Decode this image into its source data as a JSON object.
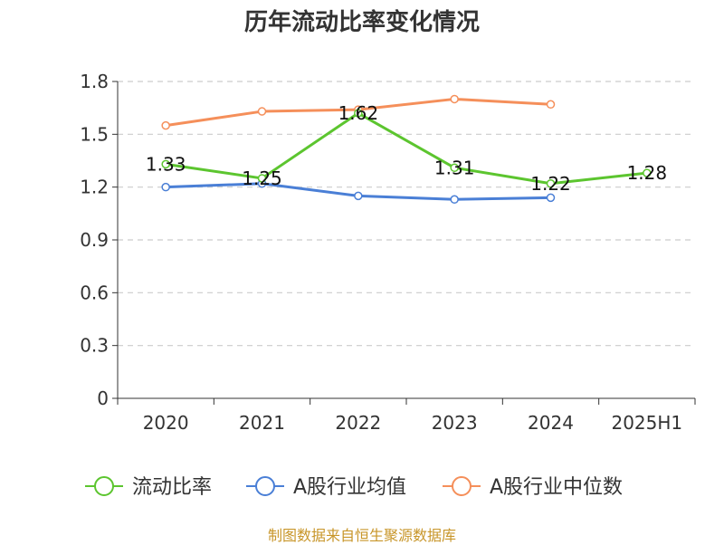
{
  "colors": {
    "grid": "#cccccc",
    "axis": "#333333",
    "text": "#333333",
    "source": "#c8962a"
  },
  "chart_data": {
    "type": "line",
    "title": "历年流动比率变化情况",
    "categories": [
      "2020",
      "2021",
      "2022",
      "2023",
      "2024",
      "2025H1"
    ],
    "ylim": [
      0,
      1.8
    ],
    "yticks": [
      "0",
      "0.3",
      "0.6",
      "0.9",
      "1.2",
      "1.5",
      "1.8"
    ],
    "grid": true,
    "legend_position": "bottom",
    "series": [
      {
        "name": "流动比率",
        "color": "#5cc52f",
        "values": [
          1.33,
          1.25,
          1.62,
          1.31,
          1.22,
          1.28
        ],
        "labels": [
          "1.33",
          "1.25",
          "1.62",
          "1.31",
          "1.22",
          "1.28"
        ]
      },
      {
        "name": "A股行业均值",
        "color": "#4a7fd6",
        "values": [
          1.2,
          1.22,
          1.15,
          1.13,
          1.14,
          null
        ]
      },
      {
        "name": "A股行业中位数",
        "color": "#f58f5a",
        "values": [
          1.55,
          1.63,
          1.64,
          1.7,
          1.67,
          null
        ]
      }
    ]
  },
  "source_text": "制图数据来自恒生聚源数据库"
}
